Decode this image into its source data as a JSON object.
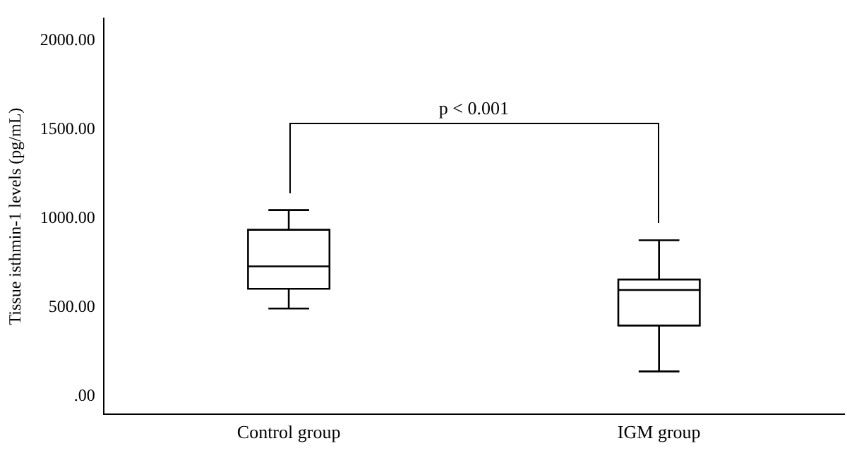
{
  "chart_data": {
    "type": "box",
    "ylabel": "Tissue isthmin-1 levels (pg/mL)",
    "categories": [
      "Control group",
      "IGM group"
    ],
    "boxes": [
      {
        "low": 494,
        "q1": 605,
        "median": 731,
        "q3": 937,
        "high": 1048
      },
      {
        "low": 140,
        "q1": 398,
        "median": 598,
        "q3": 657,
        "high": 878
      }
    ],
    "color": "#000000",
    "ylim": [
      -100,
      2125
    ],
    "yticks": [
      {
        "value": 0,
        "label": ".00"
      },
      {
        "value": 500,
        "label": "500.00"
      },
      {
        "value": 1000,
        "label": "1000.00"
      },
      {
        "value": 1500,
        "label": "1500.00"
      },
      {
        "value": 2000,
        "label": "2000.00"
      }
    ],
    "annotations": [
      "p < 0.001"
    ],
    "grid": false,
    "legend": false
  }
}
